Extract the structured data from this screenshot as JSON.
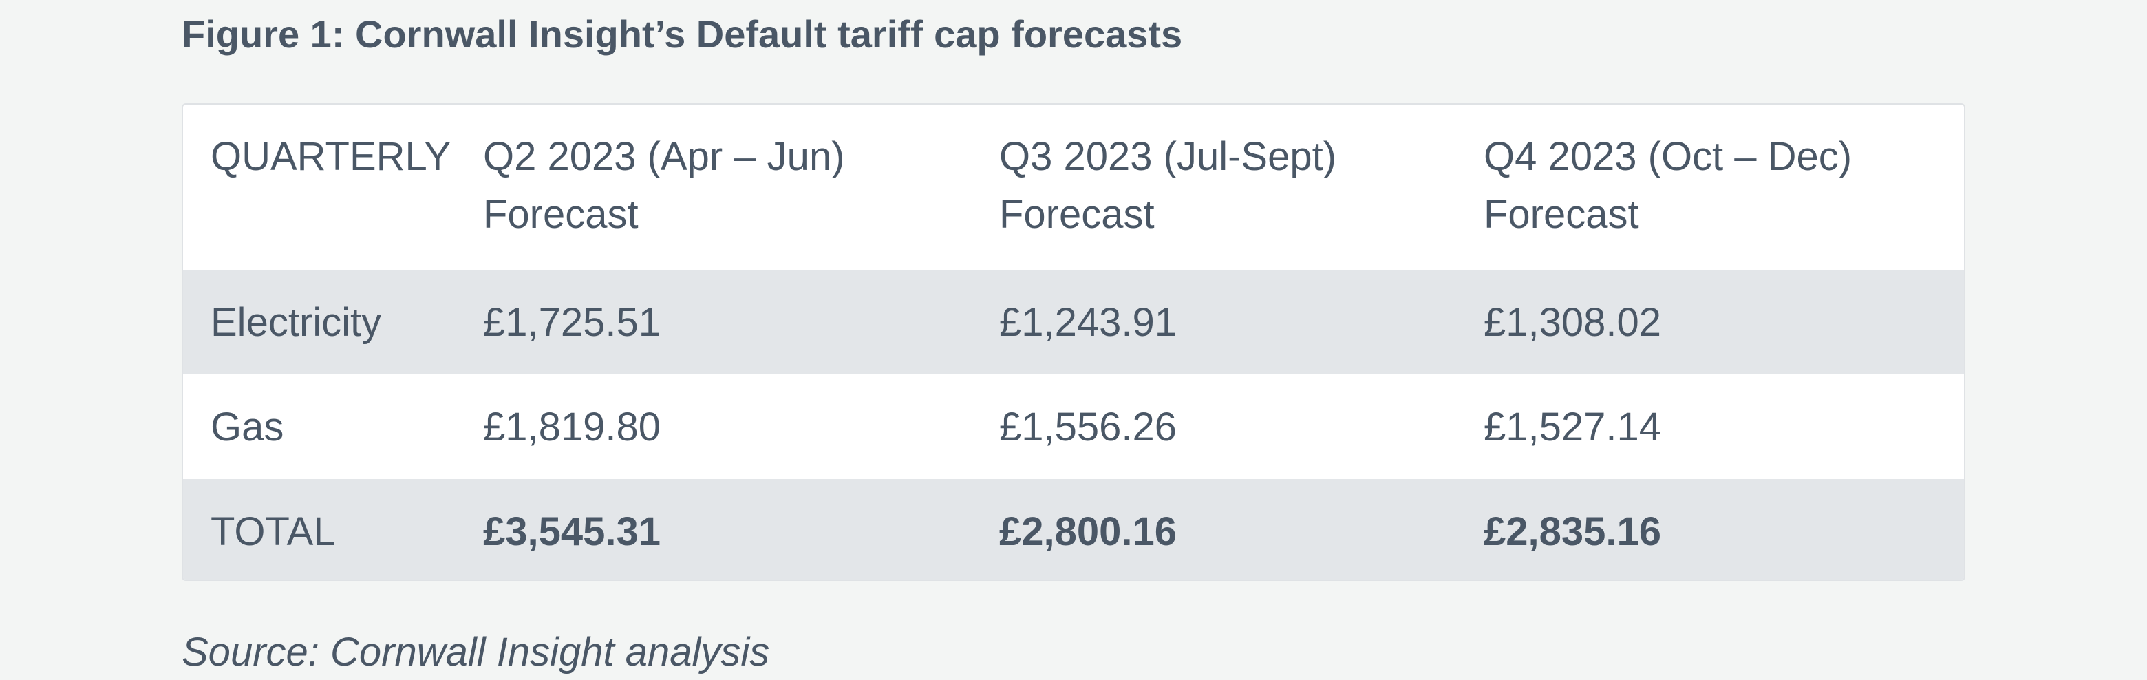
{
  "figure_title": "Figure 1: Cornwall Insight’s Default tariff cap forecasts",
  "table": {
    "headers": [
      {
        "line1": "QUARTERLY",
        "line2": ""
      },
      {
        "line1": "Q2 2023 (Apr – Jun)",
        "line2": "Forecast"
      },
      {
        "line1": "Q3 2023 (Jul-Sept)",
        "line2": "Forecast"
      },
      {
        "line1": "Q4 2023 (Oct – Dec)",
        "line2": "Forecast"
      }
    ],
    "rows": [
      {
        "label": "Electricity",
        "values": [
          "£1,725.51",
          "£1,243.91",
          "£1,308.02"
        ]
      },
      {
        "label": "Gas",
        "values": [
          "£1,819.80",
          "£1,556.26",
          "£1,527.14"
        ]
      },
      {
        "label": "TOTAL",
        "values": [
          "£3,545.31",
          "£2,800.16",
          "£2,835.16"
        ]
      }
    ]
  },
  "source": "Source: Cornwall Insight analysis",
  "colors": {
    "text": "#4a5766",
    "page_background": "#f3f5f4",
    "shaded_row": "#e3e6e9"
  }
}
